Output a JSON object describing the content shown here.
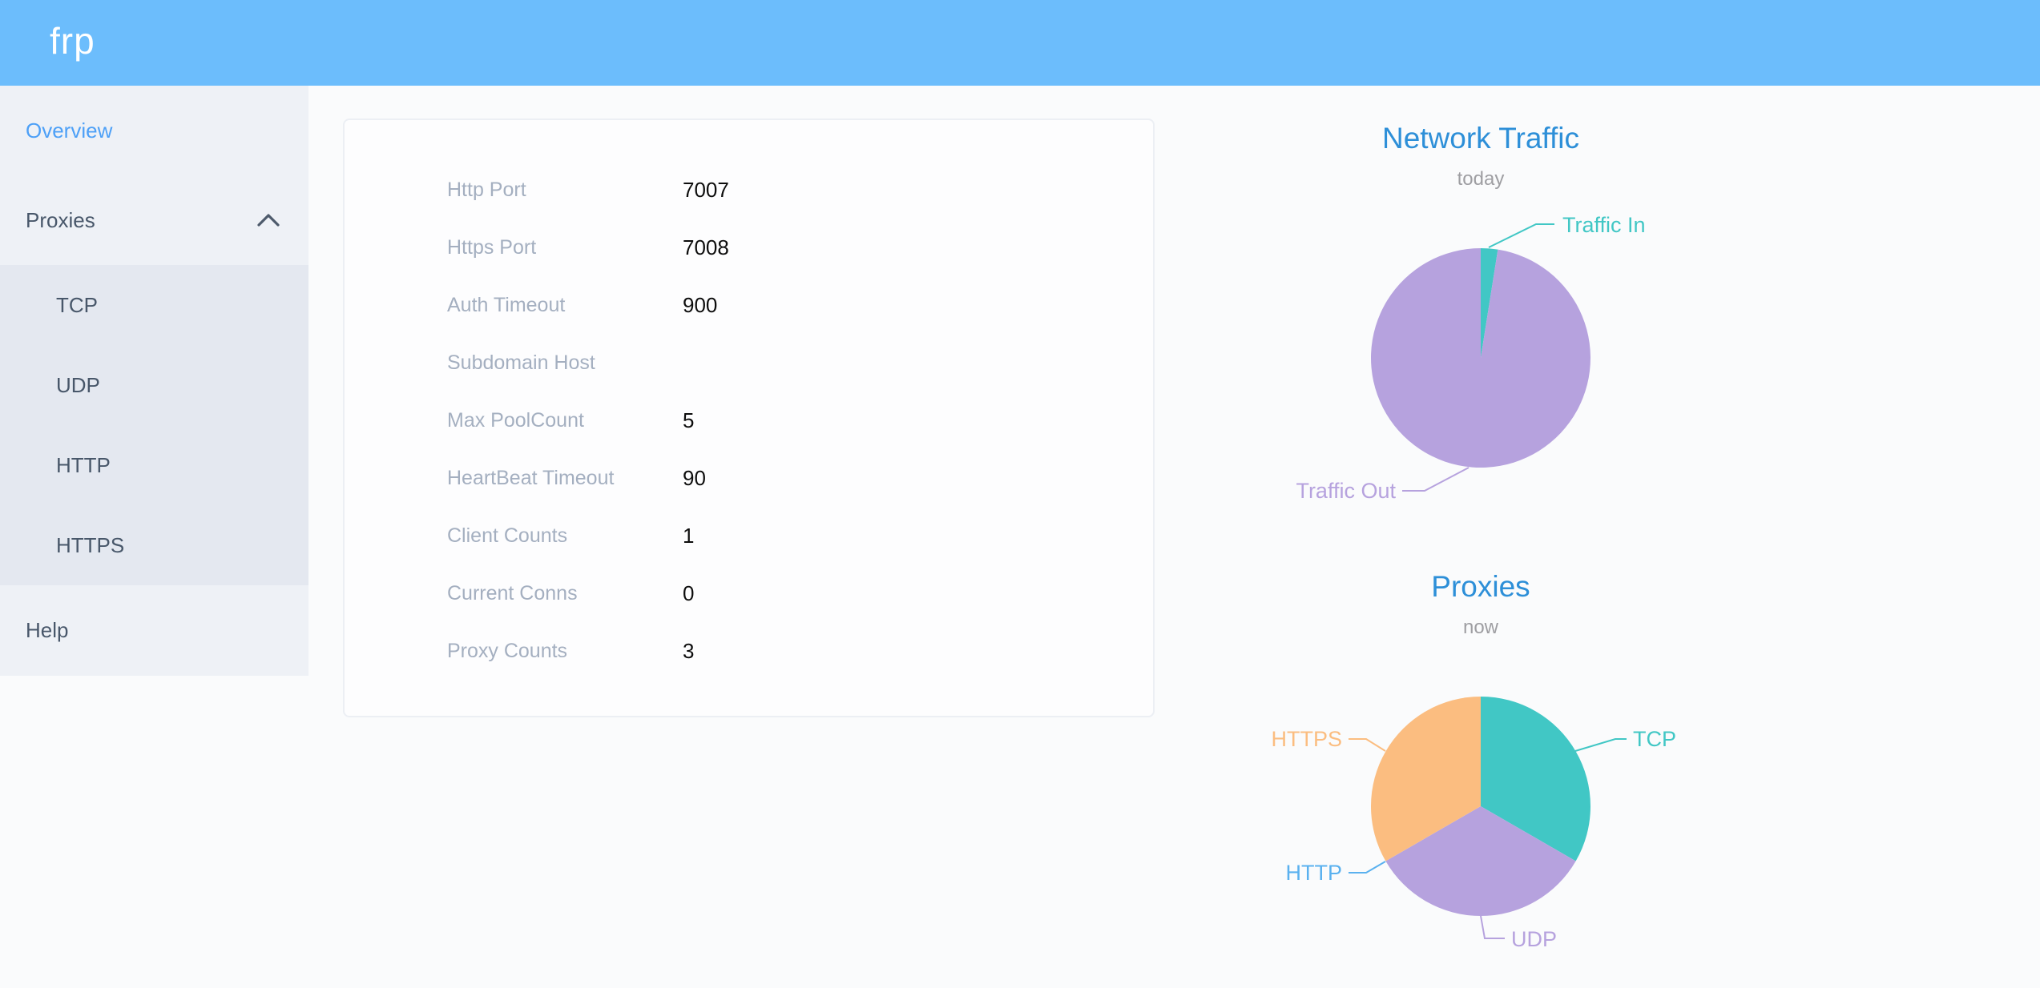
{
  "header": {
    "logo": "frp"
  },
  "sidebar": {
    "items": [
      {
        "label": "Overview",
        "active": true
      },
      {
        "label": "Proxies",
        "expanded": true,
        "children": [
          "TCP",
          "UDP",
          "HTTP",
          "HTTPS"
        ]
      },
      {
        "label": "Help"
      }
    ]
  },
  "overview_card": {
    "rows": [
      {
        "label": "Http Port",
        "value": "7007"
      },
      {
        "label": "Https Port",
        "value": "7008"
      },
      {
        "label": "Auth Timeout",
        "value": "900"
      },
      {
        "label": "Subdomain Host",
        "value": ""
      },
      {
        "label": "Max PoolCount",
        "value": "5"
      },
      {
        "label": "HeartBeat Timeout",
        "value": "90"
      },
      {
        "label": "Client Counts",
        "value": "1"
      },
      {
        "label": "Current Conns",
        "value": "0"
      },
      {
        "label": "Proxy Counts",
        "value": "3"
      }
    ]
  },
  "chart_data": [
    {
      "type": "pie",
      "title": "Network Traffic",
      "subtitle": "today",
      "legend_position": "none",
      "label_style": "outside-leader-lines",
      "series": [
        {
          "name": "Traffic In",
          "value": 2.5,
          "unit": "percent",
          "color": "#41c7c5"
        },
        {
          "name": "Traffic Out",
          "value": 97.5,
          "unit": "percent",
          "color": "#b6a2de"
        }
      ]
    },
    {
      "type": "pie",
      "title": "Proxies",
      "subtitle": "now",
      "legend_position": "none",
      "label_style": "outside-leader-lines",
      "series": [
        {
          "name": "TCP",
          "value": 1,
          "unit": "count",
          "color": "#41c7c5"
        },
        {
          "name": "UDP",
          "value": 1,
          "unit": "count",
          "color": "#b6a2de"
        },
        {
          "name": "HTTP",
          "value": 0,
          "unit": "count",
          "color": "#5ab1ef"
        },
        {
          "name": "HTTPS",
          "value": 1,
          "unit": "count",
          "color": "#fbbd80"
        }
      ]
    }
  ],
  "colors": {
    "header_bg": "#6cbdfc",
    "sidebar_bg": "#eef1f6",
    "submenu_bg": "#e4e8f0",
    "menu_text": "#48576a",
    "menu_active": "#4da0f7",
    "card_label": "#a4afc0",
    "chart_title": "#2d8fd8",
    "pie_teal": "#41c7c5",
    "pie_purple": "#b6a2de",
    "pie_blue": "#5ab1ef",
    "pie_orange": "#fbbd80"
  }
}
